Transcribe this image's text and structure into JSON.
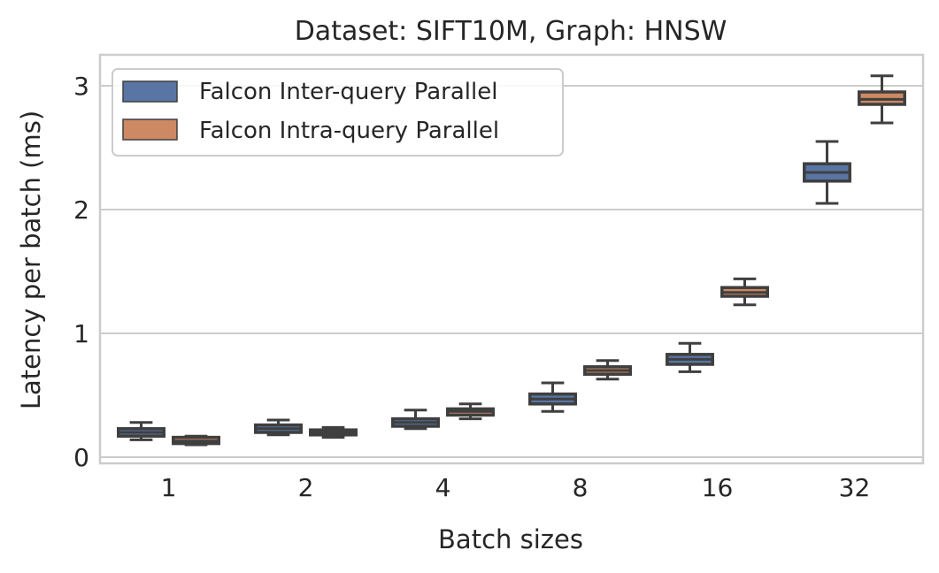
{
  "chart_data": {
    "type": "box",
    "title": "Dataset: SIFT10M, Graph: HNSW",
    "xlabel": "Batch sizes",
    "ylabel": "Latency per batch (ms)",
    "categories": [
      "1",
      "2",
      "4",
      "8",
      "16",
      "32"
    ],
    "ylim": [
      -0.05,
      3.25
    ],
    "yticks": [
      0,
      1,
      2,
      3
    ],
    "grid": "horizontal",
    "legend_position": "top-left",
    "series": [
      {
        "name": "Falcon Inter-query Parallel",
        "color": "#5875a4",
        "boxes": [
          {
            "whisker_low": 0.14,
            "q1": 0.17,
            "median": 0.2,
            "q3": 0.23,
            "whisker_high": 0.28
          },
          {
            "whisker_low": 0.18,
            "q1": 0.2,
            "median": 0.23,
            "q3": 0.26,
            "whisker_high": 0.3
          },
          {
            "whisker_low": 0.23,
            "q1": 0.25,
            "median": 0.28,
            "q3": 0.31,
            "whisker_high": 0.38
          },
          {
            "whisker_low": 0.37,
            "q1": 0.43,
            "median": 0.47,
            "q3": 0.51,
            "whisker_high": 0.6
          },
          {
            "whisker_low": 0.69,
            "q1": 0.75,
            "median": 0.79,
            "q3": 0.83,
            "whisker_high": 0.92
          },
          {
            "whisker_low": 2.05,
            "q1": 2.23,
            "median": 2.3,
            "q3": 2.37,
            "whisker_high": 2.55
          }
        ]
      },
      {
        "name": "Falcon Intra-query Parallel",
        "color": "#cc8963",
        "boxes": [
          {
            "whisker_low": 0.1,
            "q1": 0.11,
            "median": 0.13,
            "q3": 0.16,
            "whisker_high": 0.17
          },
          {
            "whisker_low": 0.16,
            "q1": 0.18,
            "median": 0.2,
            "q3": 0.22,
            "whisker_high": 0.24
          },
          {
            "whisker_low": 0.31,
            "q1": 0.34,
            "median": 0.37,
            "q3": 0.39,
            "whisker_high": 0.43
          },
          {
            "whisker_low": 0.63,
            "q1": 0.67,
            "median": 0.7,
            "q3": 0.73,
            "whisker_high": 0.78
          },
          {
            "whisker_low": 1.23,
            "q1": 1.3,
            "median": 1.33,
            "q3": 1.37,
            "whisker_high": 1.44
          },
          {
            "whisker_low": 2.7,
            "q1": 2.85,
            "median": 2.89,
            "q3": 2.95,
            "whisker_high": 3.08
          }
        ]
      }
    ]
  }
}
